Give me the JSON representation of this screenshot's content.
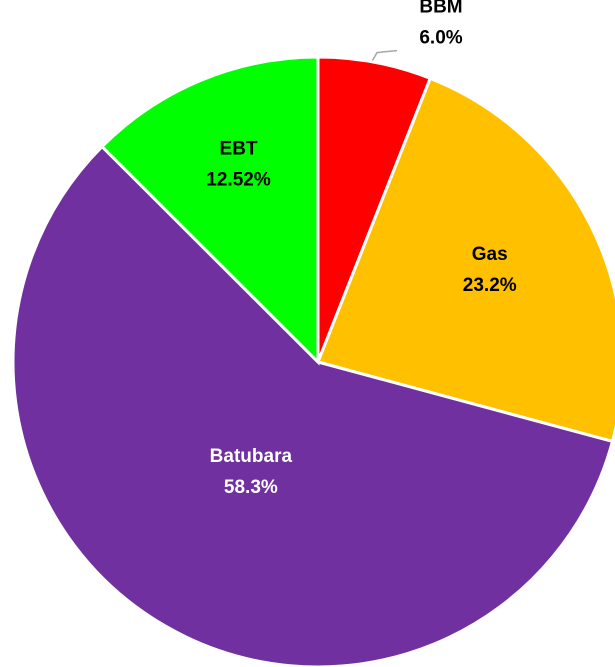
{
  "chart_data": {
    "type": "pie",
    "categories": [
      "BBM",
      "Gas",
      "Batubara",
      "EBT"
    ],
    "values": [
      6.0,
      23.2,
      58.3,
      12.52
    ],
    "value_labels": [
      "6.0%",
      "23.2%",
      "58.3%",
      "12.52%"
    ],
    "colors": [
      "#ff0000",
      "#ffc000",
      "#7030a0",
      "#00ff00"
    ],
    "label_colors": [
      "#000000",
      "#000000",
      "#ffffff",
      "#000000"
    ]
  }
}
